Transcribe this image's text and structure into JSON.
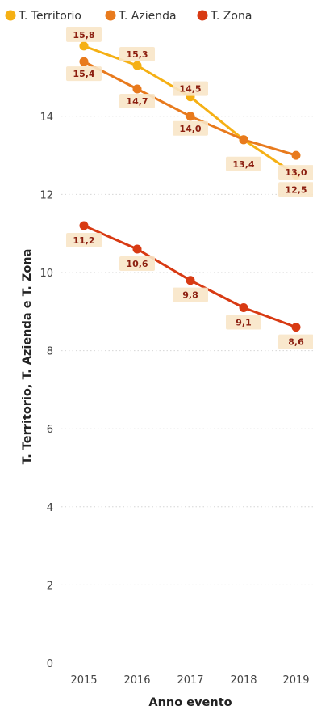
{
  "chart_data": {
    "type": "line",
    "xlabel": "Anno evento",
    "ylabel": "T. Territorio, T. Azienda e T. Zona",
    "x": [
      2015,
      2016,
      2017,
      2018,
      2019
    ],
    "x_tick_labels": [
      "2015",
      "2016",
      "2017",
      "2018",
      "2019"
    ],
    "y_ticks": [
      0,
      2,
      4,
      6,
      8,
      10,
      12,
      14
    ],
    "y_tick_labels": [
      "0",
      "2",
      "4",
      "6",
      "8",
      "10",
      "12",
      "14"
    ],
    "ylim": [
      0,
      16
    ],
    "grid": "dotted horizontal",
    "legend_position": "top",
    "series": [
      {
        "name": "T. Territorio",
        "color": "#f5b014",
        "values": [
          15.8,
          15.3,
          14.5,
          13.4,
          12.5
        ],
        "labels": [
          "15,8",
          "15,3",
          "14,5",
          "13,4",
          "12,5"
        ]
      },
      {
        "name": "T. Azienda",
        "color": "#e87a1d",
        "values": [
          15.4,
          14.7,
          14.0,
          13.4,
          13.0
        ],
        "labels": [
          "15,4",
          "14,7",
          "14,0",
          "",
          "13,0"
        ]
      },
      {
        "name": "T. Zona",
        "color": "#d83a13",
        "values": [
          11.2,
          10.6,
          9.8,
          9.1,
          8.6
        ],
        "labels": [
          "11,2",
          "10,6",
          "9,8",
          "9,1",
          "8,6"
        ]
      }
    ]
  }
}
